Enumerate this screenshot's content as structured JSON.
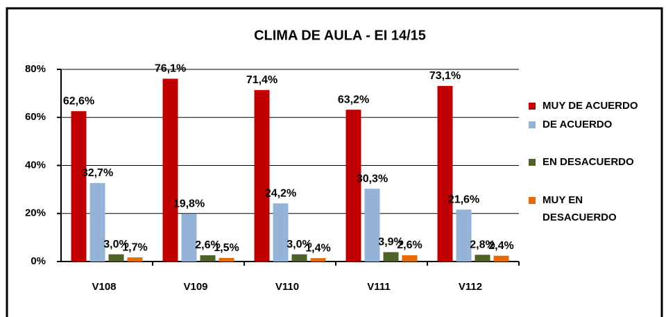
{
  "chart_data": {
    "type": "bar",
    "title": "CLIMA DE AULA - EI 14/15",
    "categories": [
      "V108",
      "V109",
      "V110",
      "V111",
      "V112"
    ],
    "series": [
      {
        "name": "MUY DE ACUERDO",
        "color": "#c00000",
        "values": [
          62.6,
          76.1,
          71.4,
          63.2,
          73.1
        ],
        "value_labels": [
          "62,6%",
          "76,1%",
          "71,4%",
          "63,2%",
          "73,1%"
        ]
      },
      {
        "name": "DE ACUERDO",
        "color": "#95b3d7",
        "values": [
          32.7,
          19.8,
          24.2,
          30.3,
          21.6
        ],
        "value_labels": [
          "32,7%",
          "19,8%",
          "24,2%",
          "30,3%",
          "21,6%"
        ]
      },
      {
        "name": "EN DESACUERDO",
        "color": "#4f6228",
        "values": [
          3.0,
          2.6,
          3.0,
          3.9,
          2.8
        ],
        "value_labels": [
          "3,0%",
          "2,6%",
          "3,0%",
          "3,9%",
          "2,8%"
        ]
      },
      {
        "name": "MUY  EN DESACUERDO",
        "color": "#e36c09",
        "values": [
          1.7,
          1.5,
          1.4,
          2.6,
          2.4
        ],
        "value_labels": [
          "1,7%",
          "1,5%",
          "1,4%",
          "2,6%",
          "2,4%"
        ]
      }
    ],
    "ylim": [
      0,
      80
    ],
    "yticks": [
      {
        "value": 0,
        "label": "0%"
      },
      {
        "value": 20,
        "label": "20%"
      },
      {
        "value": 40,
        "label": "40%"
      },
      {
        "value": 60,
        "label": "60%"
      },
      {
        "value": 80,
        "label": "80%"
      }
    ],
    "grid": true,
    "legend": "right"
  }
}
